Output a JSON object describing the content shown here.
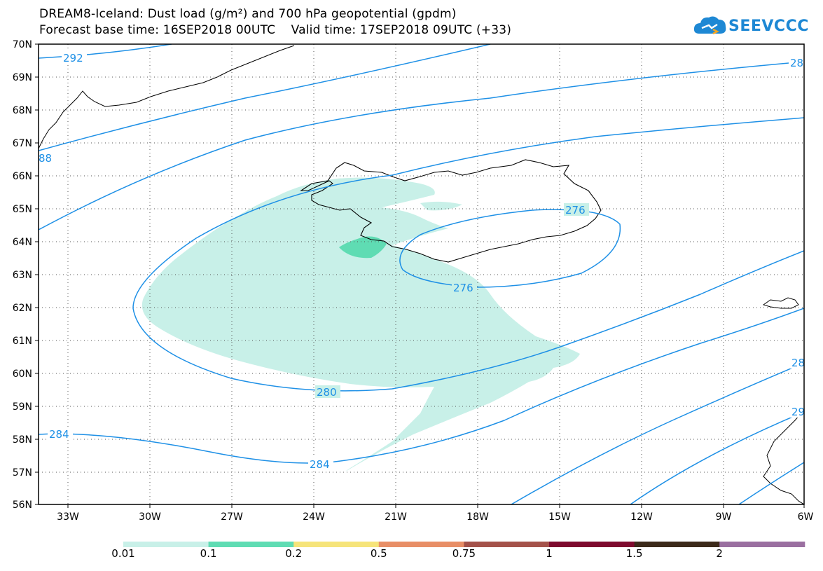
{
  "header": {
    "title_line1": "DREAM8-Iceland: Dust load (g/m²) and 700 hPa geopotential (gpdm)",
    "title_line2": "Forecast base time: 16SEP2018 00UTC    Valid time: 17SEP2018 09UTC (+33)",
    "logo_text": "SEEVCCC"
  },
  "axes": {
    "lat_labels": [
      "70N",
      "69N",
      "68N",
      "67N",
      "66N",
      "65N",
      "64N",
      "63N",
      "62N",
      "61N",
      "60N",
      "59N",
      "58N",
      "57N",
      "56N"
    ],
    "lon_labels": [
      "33W",
      "30W",
      "27W",
      "24W",
      "21W",
      "18W",
      "15W",
      "12W",
      "9W",
      "6W"
    ]
  },
  "contour_labels": {
    "c292_left": "292",
    "c288_topright": "28",
    "c288_left": "88",
    "c276_a": "276",
    "c276_b": "276",
    "c280": "280",
    "c284_left": "284",
    "c284_mid": "284",
    "c288_right1": "28",
    "c29_right": "29"
  },
  "colorbar": {
    "labels": [
      "0.01",
      "0.1",
      "0.2",
      "0.5",
      "0.75",
      "1",
      "1.5",
      "2"
    ],
    "colors": [
      "#c8f0e8",
      "#5fdcb3",
      "#f6e47a",
      "#e88e66",
      "#a4524a",
      "#7e0a2e",
      "#3c2a1a",
      "#9a6fa0"
    ]
  },
  "colors": {
    "contour": "#1e90e6",
    "dust_low": "#c8f0e8",
    "dust_mid": "#5fdcb3"
  }
}
